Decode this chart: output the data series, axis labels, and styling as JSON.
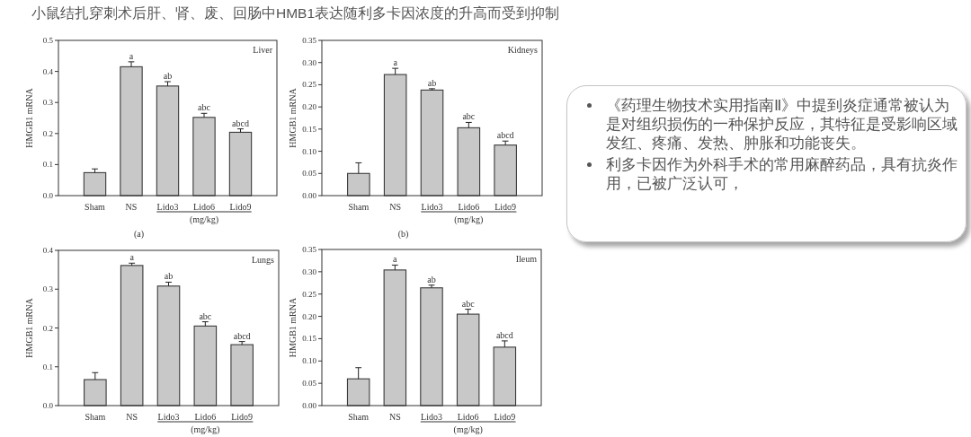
{
  "chart_data": [
    {
      "type": "other",
      "title": "小鼠结扎穿刺术后肝、肾、废、回肠中HMB1表达随利多卡因浓度的升高而受到抑制"
    },
    {
      "type": "bar",
      "title": "Liver",
      "ylabel": "HMGB1 mRNA",
      "xlabel": "(mg/kg)",
      "categories": [
        "Sham",
        "NS",
        "Lido3",
        "Lido6",
        "Lido9"
      ],
      "values": [
        0.074,
        0.415,
        0.353,
        0.252,
        0.204
      ],
      "errors": [
        [
          0.074,
          0.086
        ],
        [
          0.415,
          0.431
        ],
        [
          0.353,
          0.367
        ],
        [
          0.252,
          0.265
        ],
        [
          0.204,
          0.215
        ]
      ],
      "color": "#c8c8c8",
      "ylim": [
        0,
        0.5
      ],
      "yticks": [
        {
          "value": 0,
          "label": "0.0"
        },
        0.1,
        0.2,
        0.3,
        0.4,
        0.5
      ],
      "annotations": [
        {
          "text": "a",
          "x": "NS",
          "y": 0.431
        },
        {
          "text": "ab",
          "x": "Lido3",
          "y": 0.367
        },
        {
          "text": "abc",
          "x": "Lido6",
          "y": 0.265
        },
        {
          "text": "abcd",
          "x": "Lido9",
          "y": 0.215
        },
        "(a)"
      ]
    },
    {
      "type": "bar",
      "title": "Kidneys",
      "ylabel": "HMGB1 mRNA",
      "xlabel": "(mg/kg)",
      "categories": [
        "Sham",
        "NS",
        "Lido3",
        "Lido6",
        "Lido9"
      ],
      "values": [
        0.05,
        0.273,
        0.238,
        0.153,
        0.114
      ],
      "errors": [
        [
          0.05,
          0.074
        ],
        [
          0.273,
          0.287
        ],
        [
          0.238,
          0.241
        ],
        [
          0.153,
          0.165
        ],
        [
          0.114,
          0.123
        ]
      ],
      "color": "#c8c8c8",
      "ylim": [
        0,
        0.35
      ],
      "yticks": [
        {
          "value": 0,
          "label": "0.00"
        },
        0.05,
        {
          "value": 0.1,
          "label": "0.10"
        },
        0.15,
        {
          "value": 0.2,
          "label": "0.20"
        },
        0.25,
        {
          "value": 0.3,
          "label": "0.30"
        },
        0.35
      ],
      "annotations": [
        {
          "text": "a",
          "x": "NS",
          "y": 0.287
        },
        {
          "text": "ab",
          "x": "Lido3",
          "y": 0.241
        },
        {
          "text": "abc",
          "x": "Lido6",
          "y": 0.165
        },
        {
          "text": "abcd",
          "x": "Lido9",
          "y": 0.123
        },
        "(b)"
      ]
    },
    {
      "type": "bar",
      "title": "Lungs",
      "ylabel": "HMGB1 mRNA",
      "xlabel": "(mg/kg)",
      "categories": [
        "Sham",
        "NS",
        "Lido3",
        "Lido6",
        "Lido9"
      ],
      "values": [
        0.067,
        0.361,
        0.308,
        0.205,
        0.157
      ],
      "errors": [
        [
          0.067,
          0.085
        ],
        [
          0.361,
          0.367
        ],
        [
          0.308,
          0.318
        ],
        [
          0.205,
          0.216
        ],
        [
          0.157,
          0.165
        ]
      ],
      "color": "#c8c8c8",
      "ylim": [
        0,
        0.4
      ],
      "yticks": [
        {
          "value": 0,
          "label": "0.0"
        },
        0.1,
        0.2,
        0.3,
        0.4
      ],
      "annotations": [
        {
          "text": "a",
          "x": "NS",
          "y": 0.367
        },
        {
          "text": "ab",
          "x": "Lido3",
          "y": 0.318
        },
        {
          "text": "abc",
          "x": "Lido6",
          "y": 0.216
        },
        {
          "text": "abcd",
          "x": "Lido9",
          "y": 0.165
        }
      ]
    },
    {
      "type": "bar",
      "title": "Ileum",
      "ylabel": "HMGB1 mRNA",
      "xlabel": "(mg/kg)",
      "categories": [
        "Sham",
        "NS",
        "Lido3",
        "Lido6",
        "Lido9"
      ],
      "values": [
        0.06,
        0.304,
        0.264,
        0.205,
        0.131
      ],
      "errors": [
        [
          0.06,
          0.085
        ],
        [
          0.304,
          0.315
        ],
        [
          0.264,
          0.27
        ],
        [
          0.205,
          0.216
        ],
        [
          0.131,
          0.145
        ]
      ],
      "color": "#c8c8c8",
      "ylim": [
        0,
        0.35
      ],
      "yticks": [
        {
          "value": 0,
          "label": "0.00"
        },
        0.05,
        {
          "value": 0.1,
          "label": "0.10"
        },
        0.15,
        {
          "value": 0.2,
          "label": "0.20"
        },
        0.25,
        {
          "value": 0.3,
          "label": "0.30"
        },
        0.35
      ],
      "annotations": [
        {
          "text": "a",
          "x": "NS",
          "y": 0.315
        },
        {
          "text": "ab",
          "x": "Lido3",
          "y": 0.27
        },
        {
          "text": "abc",
          "x": "Lido6",
          "y": 0.216
        },
        {
          "text": "abcd",
          "x": "Lido9",
          "y": 0.145
        }
      ]
    },
    {
      "type": "other",
      "annotations": [
        "《药理生物技术实用指南Ⅱ》中提到炎症通常被认为是对组织损伤的一种保护反应，其特征是受影响区域发红、疼痛、发热、肿胀和功能丧失。",
        "利多卡因作为外科手术的常用麻醉药品，具有抗炎作用，已被广泛认可，"
      ]
    }
  ]
}
